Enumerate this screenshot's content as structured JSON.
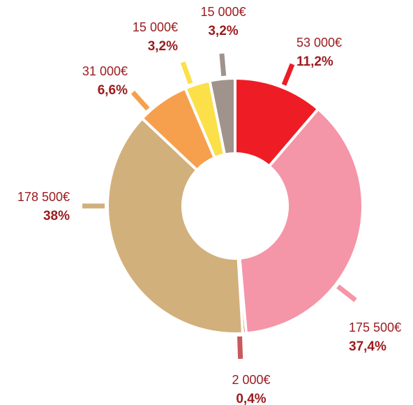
{
  "chart_data": {
    "type": "donut",
    "values": [
      53000,
      175500,
      2000,
      178500,
      31000,
      15000,
      15000
    ],
    "value_labels": [
      "53 000€",
      "175 500€",
      "2 000€",
      "178 500€",
      "31 000€",
      "15 000€",
      "15 000€"
    ],
    "shares": [
      11.2,
      37.4,
      0.4,
      38,
      6.6,
      3.2,
      3.2
    ],
    "share_labels": [
      "11,2%",
      "37,4%",
      "0,4%",
      "38%",
      "6,6%",
      "3,2%",
      "3,2%"
    ],
    "colors": [
      "#ee1c25",
      "#f595a8",
      "#c8585a",
      "#d2b07c",
      "#f6a04d",
      "#fbe04a",
      "#a0938c"
    ]
  }
}
